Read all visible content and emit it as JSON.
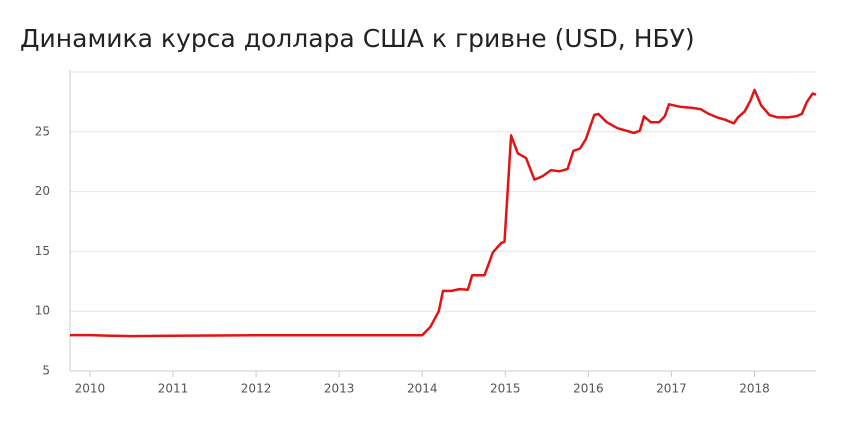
{
  "chart_data": {
    "type": "line",
    "title": "Динамика курса доллара США к гривне (USD, НБУ)",
    "x": [
      2009.76,
      2010.0,
      2010.25,
      2010.5,
      2011.0,
      2011.5,
      2012.0,
      2013.0,
      2014.0,
      2014.1,
      2014.2,
      2014.25,
      2014.35,
      2014.45,
      2014.55,
      2014.6,
      2014.75,
      2014.85,
      2014.95,
      2014.99,
      2015.07,
      2015.15,
      2015.25,
      2015.35,
      2015.45,
      2015.55,
      2015.65,
      2015.75,
      2015.82,
      2015.9,
      2015.97,
      2016.07,
      2016.12,
      2016.22,
      2016.35,
      2016.55,
      2016.62,
      2016.67,
      2016.75,
      2016.85,
      2016.92,
      2016.97,
      2017.1,
      2017.25,
      2017.35,
      2017.45,
      2017.55,
      2017.65,
      2017.75,
      2017.8,
      2017.88,
      2017.95,
      2018.0,
      2018.08,
      2018.18,
      2018.28,
      2018.4,
      2018.5,
      2018.57,
      2018.63,
      2018.7,
      2018.74
    ],
    "series": [
      {
        "name": "USD",
        "color": "#e31313",
        "values": [
          8.0,
          8.0,
          7.95,
          7.92,
          7.95,
          7.97,
          7.99,
          7.99,
          7.99,
          8.7,
          10.0,
          11.7,
          11.7,
          11.85,
          11.8,
          13.0,
          13.0,
          14.9,
          15.7,
          15.8,
          24.7,
          23.2,
          22.8,
          21.0,
          21.3,
          21.8,
          21.7,
          21.9,
          23.4,
          23.6,
          24.4,
          26.4,
          26.5,
          25.8,
          25.3,
          24.9,
          25.1,
          26.3,
          25.8,
          25.8,
          26.3,
          27.3,
          27.1,
          27.0,
          26.9,
          26.5,
          26.2,
          26.0,
          25.7,
          26.2,
          26.7,
          27.6,
          28.5,
          27.2,
          26.4,
          26.2,
          26.2,
          26.3,
          26.5,
          27.5,
          28.2,
          28.1
        ]
      }
    ],
    "xlim": [
      2009.76,
      2018.74
    ],
    "xticks": [
      2010,
      2011,
      2012,
      2013,
      2014,
      2015,
      2016,
      2017,
      2018
    ],
    "ylim": [
      5,
      30
    ],
    "yticks": [
      5,
      10,
      15,
      20,
      25
    ],
    "grid": true
  }
}
